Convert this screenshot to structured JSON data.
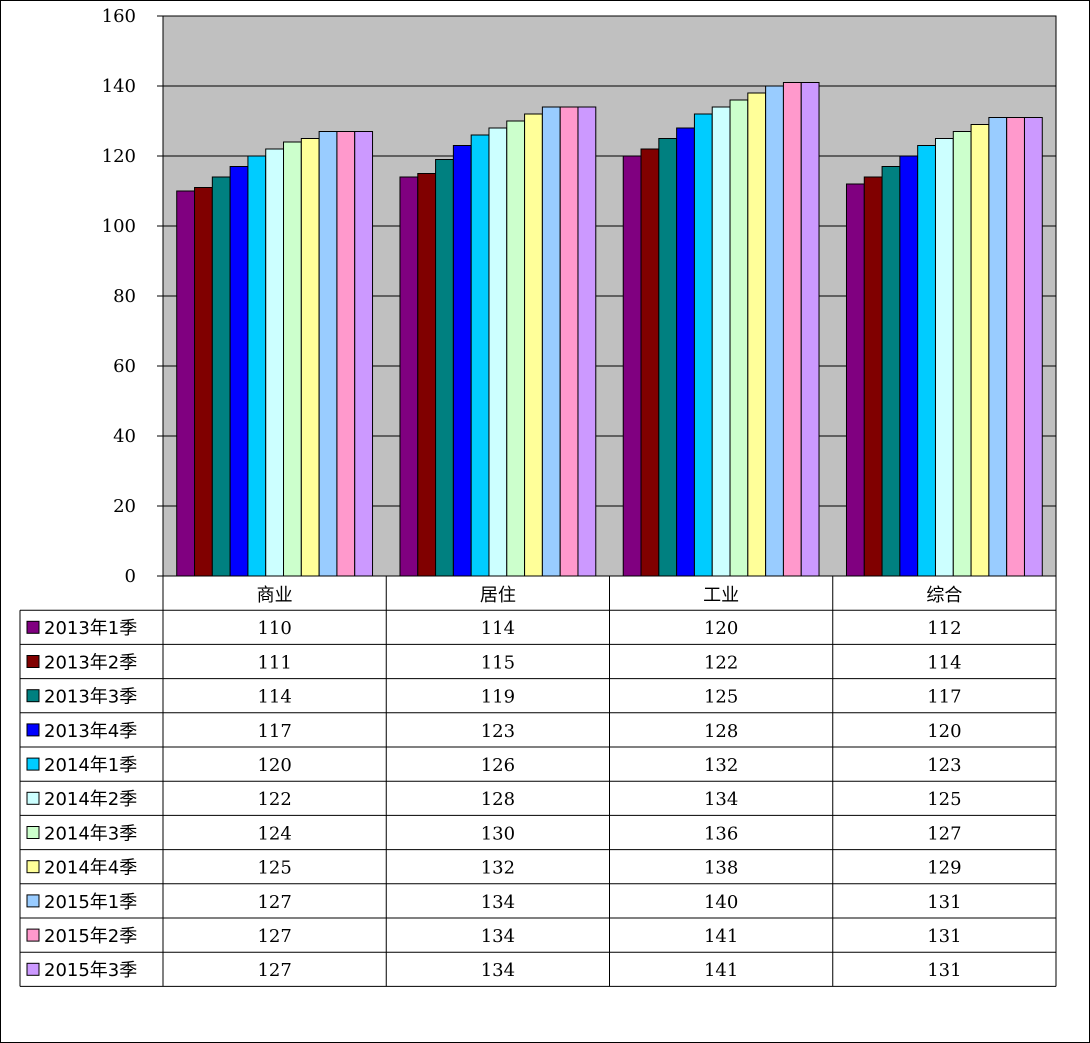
{
  "chart_data": {
    "type": "bar",
    "categories": [
      "商业",
      "居住",
      "工业",
      "综合"
    ],
    "series": [
      {
        "name": "2013年1季",
        "color": "#800080",
        "values": [
          110,
          114,
          120,
          112
        ]
      },
      {
        "name": "2013年2季",
        "color": "#800000",
        "values": [
          111,
          115,
          122,
          114
        ]
      },
      {
        "name": "2013年3季",
        "color": "#008080",
        "values": [
          114,
          119,
          125,
          117
        ]
      },
      {
        "name": "2013年4季",
        "color": "#0000ff",
        "values": [
          117,
          123,
          128,
          120
        ]
      },
      {
        "name": "2014年1季",
        "color": "#00ccff",
        "values": [
          120,
          126,
          132,
          123
        ]
      },
      {
        "name": "2014年2季",
        "color": "#ccffff",
        "values": [
          122,
          128,
          134,
          125
        ]
      },
      {
        "name": "2014年3季",
        "color": "#ccffcc",
        "values": [
          124,
          130,
          136,
          127
        ]
      },
      {
        "name": "2014年4季",
        "color": "#ffff99",
        "values": [
          125,
          132,
          138,
          129
        ]
      },
      {
        "name": "2015年1季",
        "color": "#99ccff",
        "values": [
          127,
          134,
          140,
          131
        ]
      },
      {
        "name": "2015年2季",
        "color": "#ff99cc",
        "values": [
          127,
          134,
          141,
          131
        ]
      },
      {
        "name": "2015年3季",
        "color": "#cc99ff",
        "values": [
          127,
          134,
          141,
          131
        ]
      }
    ],
    "ylim": [
      0,
      160
    ],
    "yticks": [
      0,
      20,
      40,
      60,
      80,
      100,
      120,
      140,
      160
    ],
    "grid": true,
    "plot_background": "#c0c0c0",
    "legend": "data-table"
  }
}
